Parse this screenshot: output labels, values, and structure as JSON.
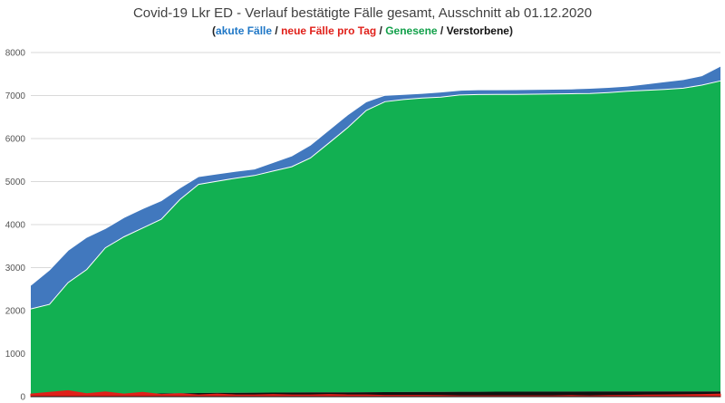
{
  "chart_data": {
    "type": "area",
    "title": "Covid-19 Lkr ED - Verlauf bestätigte Fälle gesamt, Ausschnitt ab 01.12.2020",
    "subtitle_parts": {
      "open": "(",
      "acute": "akute Fälle",
      "sep1": " / ",
      "new": "neue Fälle pro Tag",
      "sep2": " / ",
      "recovered": "Genesene",
      "sep3": " / ",
      "deceased": "Verstorbene",
      "close": ")"
    },
    "xlabel": "",
    "ylabel": "",
    "ylim": [
      0,
      8000
    ],
    "yticks": [
      "0",
      "1000",
      "2000",
      "3000",
      "4000",
      "5000",
      "6000",
      "7000",
      "8000"
    ],
    "grid": true,
    "colors": {
      "acute": "#4178be",
      "recovered": "#12b052",
      "new": "#e0201a",
      "deceased": "#111111",
      "grid": "#d9d9d9"
    },
    "x": [
      0,
      5,
      10,
      15,
      20,
      25,
      30,
      35,
      40,
      45,
      50,
      55,
      60,
      65,
      70,
      75,
      80,
      85,
      90,
      95,
      100,
      105,
      110,
      115,
      120,
      125,
      130,
      135,
      140,
      145,
      150,
      155,
      160,
      165,
      170,
      175,
      180,
      185
    ],
    "series": [
      {
        "name": "Verstorbene",
        "values": [
          40,
          45,
          50,
          55,
          60,
          65,
          70,
          75,
          80,
          85,
          88,
          90,
          92,
          94,
          96,
          98,
          100,
          102,
          104,
          106,
          108,
          110,
          112,
          113,
          114,
          115,
          116,
          117,
          118,
          118,
          119,
          119,
          120,
          120,
          121,
          121,
          122,
          122
        ]
      },
      {
        "name": "Genesene",
        "values": [
          2000,
          2100,
          2600,
          2900,
          3400,
          3650,
          3850,
          4050,
          4500,
          4850,
          4920,
          4990,
          5050,
          5150,
          5250,
          5450,
          5800,
          6150,
          6550,
          6750,
          6800,
          6830,
          6850,
          6900,
          6910,
          6910,
          6910,
          6915,
          6920,
          6925,
          6930,
          6950,
          6980,
          7000,
          7020,
          7050,
          7120,
          7220
        ]
      },
      {
        "name": "akute Fälle",
        "values": [
          550,
          800,
          750,
          750,
          450,
          450,
          450,
          430,
          270,
          180,
          170,
          160,
          150,
          200,
          250,
          300,
          300,
          300,
          200,
          150,
          120,
          110,
          120,
          110,
          110,
          110,
          110,
          110,
          110,
          110,
          120,
          120,
          120,
          150,
          180,
          200,
          220,
          340
        ]
      },
      {
        "name": "neue Fälle pro Tag",
        "values": [
          60,
          100,
          140,
          70,
          110,
          60,
          100,
          50,
          70,
          40,
          60,
          40,
          40,
          50,
          40,
          40,
          50,
          40,
          40,
          30,
          30,
          30,
          25,
          20,
          20,
          20,
          20,
          20,
          20,
          25,
          20,
          25,
          30,
          35,
          40,
          45,
          50,
          60
        ]
      }
    ]
  }
}
